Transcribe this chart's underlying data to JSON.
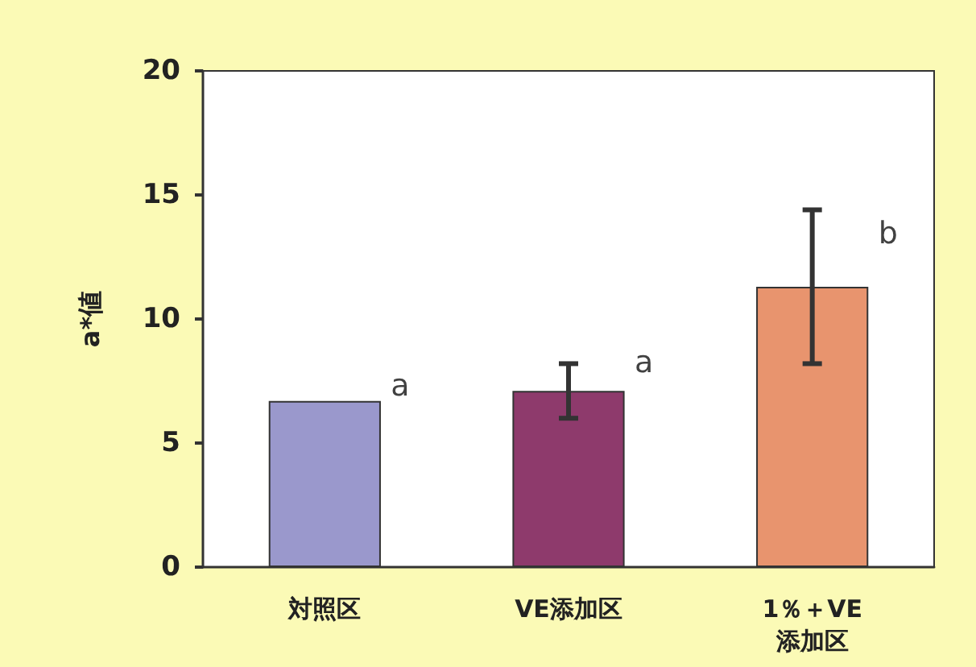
{
  "chart_data": {
    "type": "bar",
    "ylabel": "a*値",
    "categories": [
      "対照区",
      "VE添加区",
      "1％＋VE\n添加区"
    ],
    "values": [
      6.7,
      7.1,
      11.3
    ],
    "colors": [
      "#9a98cc",
      "#8e3a6c",
      "#e8946e"
    ],
    "errors": [
      null,
      1.1,
      3.1
    ],
    "ylim": [
      0,
      20
    ],
    "yticks": [
      0,
      5,
      10,
      15,
      20
    ],
    "grid": false,
    "annotations": [
      "a",
      "a",
      "b"
    ]
  }
}
